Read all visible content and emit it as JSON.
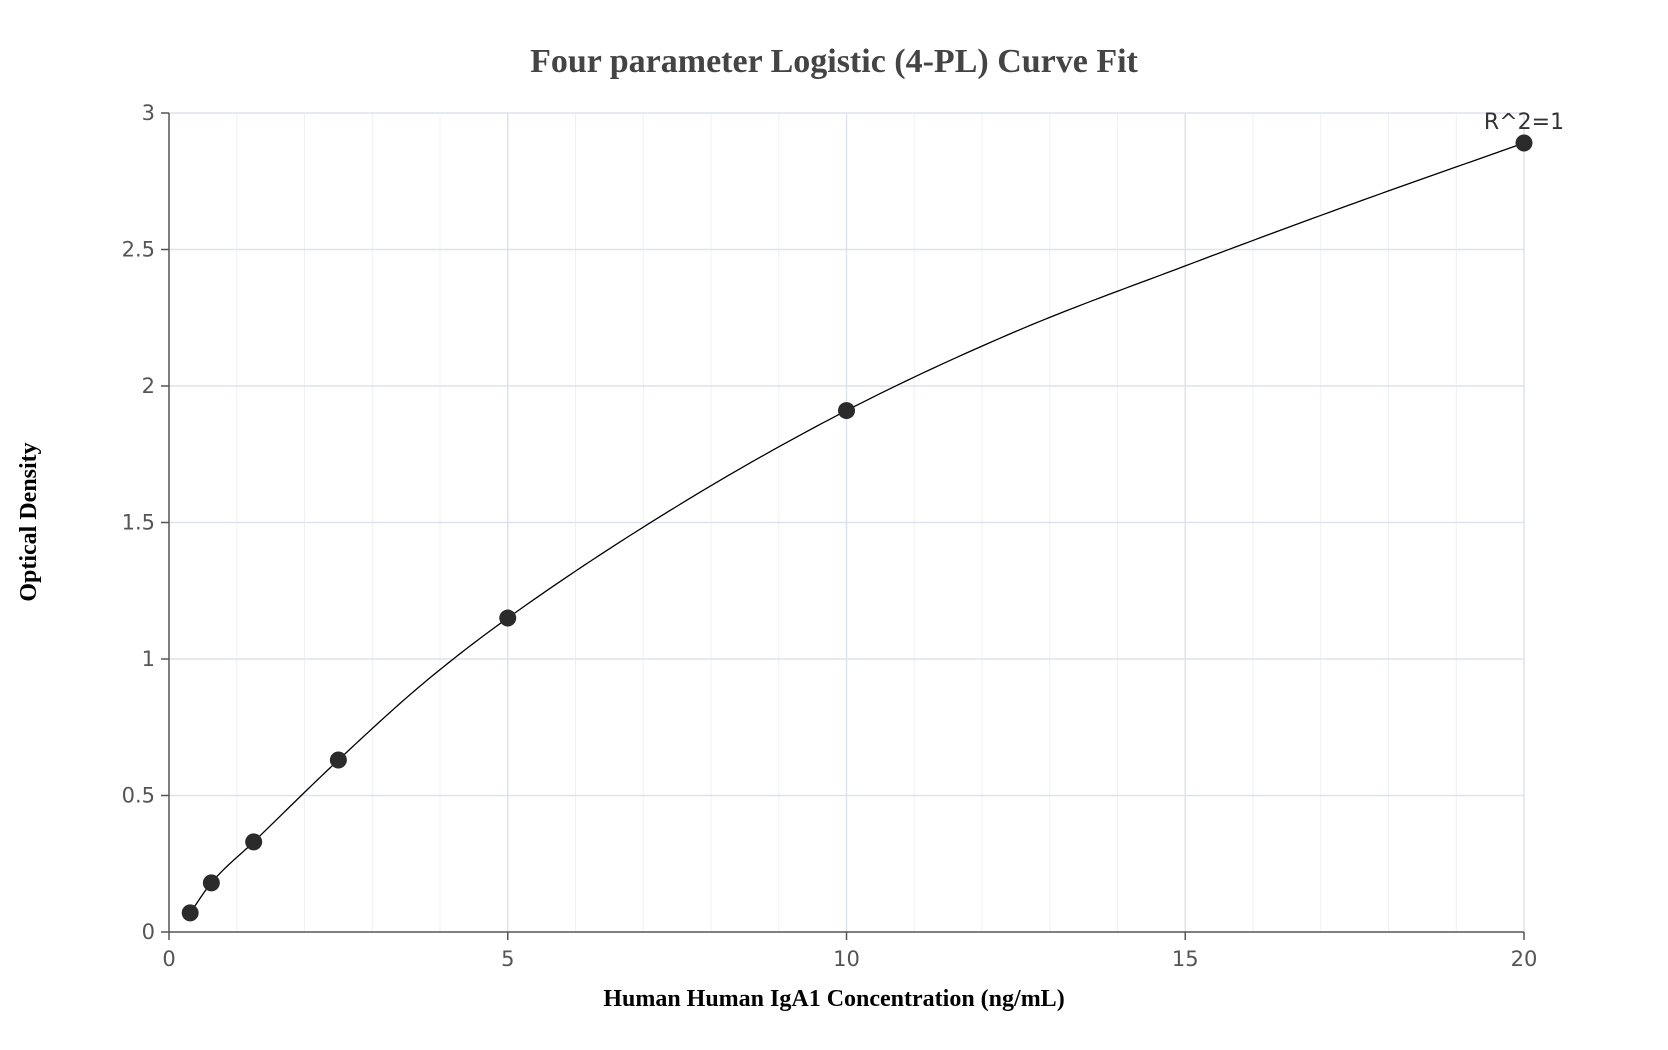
{
  "chart_data": {
    "type": "scatter",
    "title": "Four parameter Logistic (4-PL) Curve Fit",
    "xlabel": "Human Human IgA1 Concentration (ng/mL)",
    "ylabel": "Optical Density",
    "xlim": [
      0,
      20
    ],
    "ylim": [
      0,
      3
    ],
    "x_ticks": [
      0,
      5,
      10,
      15,
      20
    ],
    "y_ticks": [
      0,
      0.5,
      1,
      1.5,
      2,
      2.5,
      3
    ],
    "x_tick_labels": [
      "0",
      "5",
      "10",
      "15",
      "20"
    ],
    "y_tick_labels": [
      "0",
      "0.5",
      "1",
      "1.5",
      "2",
      "2.5",
      "3"
    ],
    "x_minor_step": 1,
    "y_minor_step": 0.5,
    "grid": true,
    "series": [
      {
        "x": [
          0.3125,
          0.625,
          1.25,
          2.5,
          5,
          10,
          20
        ],
        "y": [
          0.07,
          0.18,
          0.33,
          0.63,
          1.15,
          1.91,
          2.89
        ]
      }
    ],
    "fit_curve": {
      "x": [
        0.3125,
        0.625,
        1.25,
        2.5,
        3.75,
        5,
        7.5,
        10,
        12.5,
        15,
        17.5,
        20
      ],
      "y": [
        0.07,
        0.18,
        0.33,
        0.63,
        0.91,
        1.15,
        1.56,
        1.91,
        2.2,
        2.44,
        2.67,
        2.89
      ]
    },
    "annotation": "R^2=1",
    "colors": {
      "marker": "#2b2b2b",
      "line": "#000000",
      "grid_major": "#dde3ec",
      "grid_minor": "#eef1f5",
      "axis": "#555555"
    }
  }
}
